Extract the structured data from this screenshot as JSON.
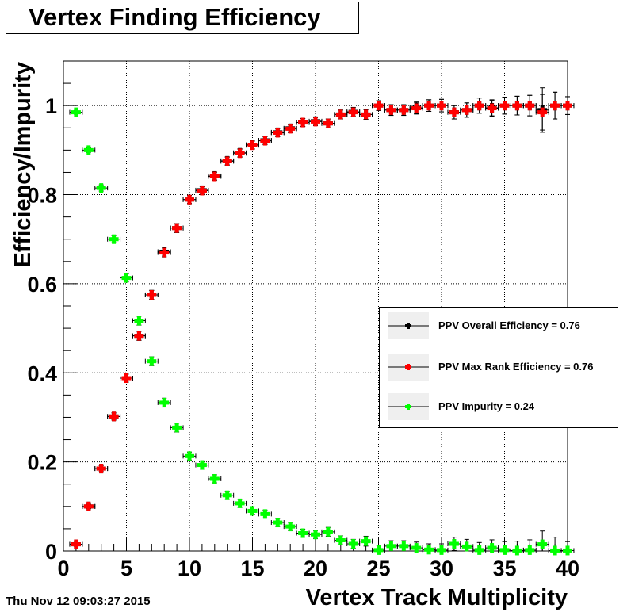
{
  "footer": {
    "timestamp": "Thu Nov 12 09:03:27 2015"
  },
  "chart_data": {
    "type": "scatter",
    "title": "Vertex Finding Efficiency",
    "xlabel": "Vertex Track Multiplicity",
    "ylabel": "Efficiency/Impurity",
    "xlim": [
      0,
      40
    ],
    "ylim": [
      0,
      1.1
    ],
    "xticks": [
      0,
      5,
      10,
      15,
      20,
      25,
      30,
      35,
      40
    ],
    "xtick_labels": [
      "0",
      "5",
      "10",
      "15",
      "20",
      "25",
      "30",
      "35",
      "40"
    ],
    "yticks": [
      0,
      0.2,
      0.4,
      0.6,
      0.8,
      1
    ],
    "ytick_labels": [
      "0",
      "0.2",
      "0.4",
      "0.6",
      "0.8",
      "1"
    ],
    "grid": true,
    "legend_position": "right",
    "x_error": 0.5,
    "x": [
      1,
      2,
      3,
      4,
      5,
      6,
      7,
      8,
      9,
      10,
      11,
      12,
      13,
      14,
      15,
      16,
      17,
      18,
      19,
      20,
      21,
      22,
      23,
      24,
      25,
      26,
      27,
      28,
      29,
      30,
      31,
      32,
      33,
      34,
      35,
      36,
      37,
      38,
      39,
      40
    ],
    "series": [
      {
        "name": "PPV Overall Efficiency = 0.76",
        "color": "#000000",
        "y": [
          0.015,
          0.1,
          0.185,
          0.302,
          0.388,
          0.483,
          0.575,
          0.672,
          0.725,
          0.789,
          0.81,
          0.842,
          0.876,
          0.894,
          0.912,
          0.922,
          0.94,
          0.949,
          0.962,
          0.965,
          0.96,
          0.98,
          0.986,
          0.98,
          1.0,
          0.99,
          0.99,
          0.995,
          1.0,
          1.0,
          0.985,
          0.99,
          1.0,
          0.995,
          1.0,
          1.0,
          1.0,
          0.99,
          1.0,
          1.0
        ],
        "err": [
          0.004,
          0.005,
          0.007,
          0.008,
          0.009,
          0.01,
          0.01,
          0.01,
          0.01,
          0.009,
          0.009,
          0.009,
          0.009,
          0.009,
          0.009,
          0.009,
          0.009,
          0.009,
          0.009,
          0.009,
          0.01,
          0.01,
          0.01,
          0.011,
          0.011,
          0.012,
          0.012,
          0.013,
          0.013,
          0.014,
          0.015,
          0.016,
          0.017,
          0.018,
          0.019,
          0.021,
          0.023,
          0.05,
          0.03,
          0.02
        ]
      },
      {
        "name": "PPV Max Rank Efficiency = 0.76",
        "color": "#ff0000",
        "y": [
          0.015,
          0.1,
          0.185,
          0.302,
          0.388,
          0.483,
          0.575,
          0.67,
          0.725,
          0.789,
          0.809,
          0.841,
          0.875,
          0.893,
          0.911,
          0.921,
          0.939,
          0.948,
          0.962,
          0.964,
          0.96,
          0.98,
          0.985,
          0.98,
          1.0,
          0.99,
          0.99,
          0.994,
          1.0,
          1.0,
          0.985,
          0.99,
          1.0,
          0.994,
          1.0,
          1.0,
          1.0,
          0.985,
          1.0,
          1.0
        ],
        "err": [
          0.004,
          0.005,
          0.007,
          0.008,
          0.009,
          0.01,
          0.01,
          0.01,
          0.01,
          0.009,
          0.009,
          0.009,
          0.009,
          0.009,
          0.009,
          0.009,
          0.009,
          0.009,
          0.009,
          0.009,
          0.01,
          0.01,
          0.01,
          0.011,
          0.011,
          0.012,
          0.012,
          0.013,
          0.013,
          0.014,
          0.015,
          0.016,
          0.017,
          0.018,
          0.019,
          0.021,
          0.023,
          0.04,
          0.03,
          0.02
        ]
      },
      {
        "name": "PPV Impurity = 0.24",
        "color": "#00ff00",
        "y": [
          0.985,
          0.9,
          0.815,
          0.7,
          0.613,
          0.517,
          0.426,
          0.333,
          0.277,
          0.213,
          0.193,
          0.162,
          0.125,
          0.107,
          0.09,
          0.083,
          0.064,
          0.055,
          0.04,
          0.037,
          0.043,
          0.024,
          0.016,
          0.022,
          0.002,
          0.011,
          0.011,
          0.007,
          0.003,
          0.002,
          0.016,
          0.01,
          0.002,
          0.007,
          0.002,
          0.001,
          0.002,
          0.015,
          0.001,
          0.001
        ],
        "err": [
          0.004,
          0.005,
          0.007,
          0.008,
          0.009,
          0.01,
          0.01,
          0.01,
          0.01,
          0.009,
          0.009,
          0.009,
          0.009,
          0.009,
          0.009,
          0.009,
          0.009,
          0.009,
          0.009,
          0.009,
          0.01,
          0.01,
          0.01,
          0.011,
          0.011,
          0.012,
          0.012,
          0.013,
          0.013,
          0.014,
          0.015,
          0.016,
          0.017,
          0.018,
          0.019,
          0.021,
          0.023,
          0.03,
          0.03,
          0.02
        ]
      }
    ]
  }
}
